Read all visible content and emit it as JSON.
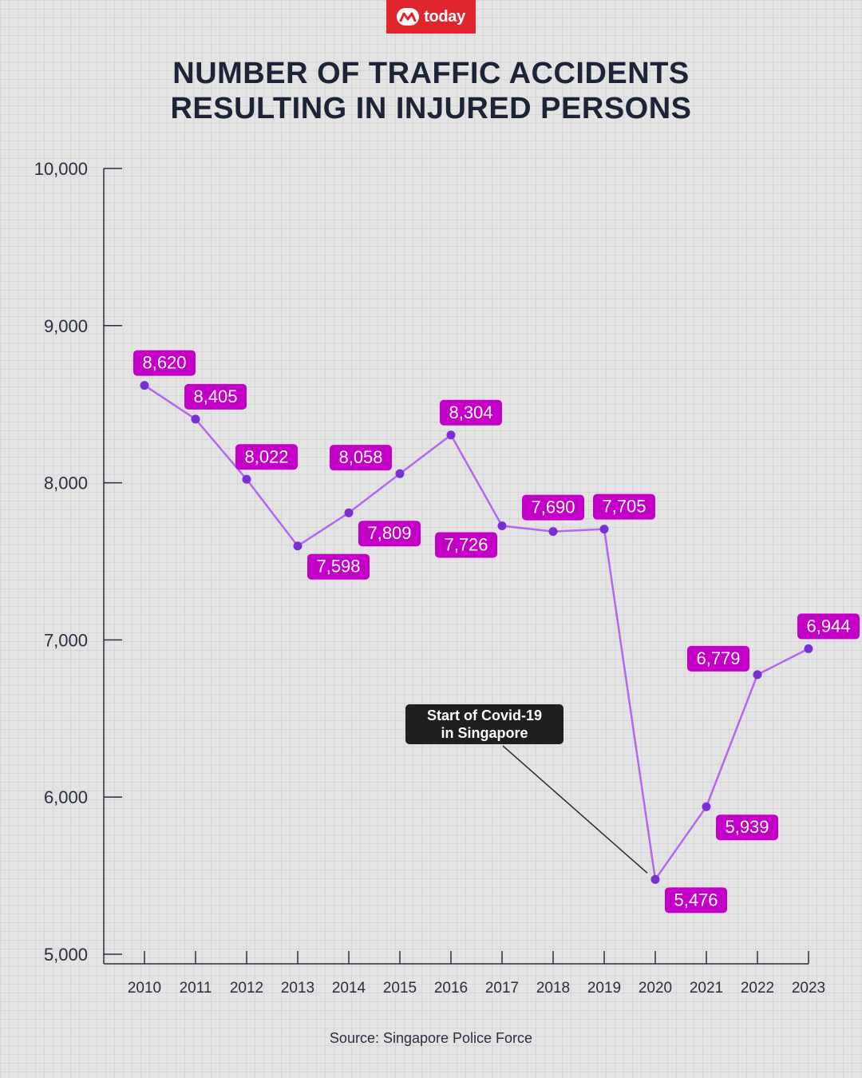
{
  "brand": {
    "name": "today",
    "color": "#e0262c"
  },
  "title": {
    "line1": "NUMBER OF TRAFFIC ACCIDENTS",
    "line2": "RESULTING IN INJURED PERSONS"
  },
  "source": "Source: Singapore Police Force",
  "chart_data": {
    "type": "line",
    "categories": [
      "2010",
      "2011",
      "2012",
      "2013",
      "2014",
      "2015",
      "2016",
      "2017",
      "2018",
      "2019",
      "2020",
      "2021",
      "2022",
      "2023"
    ],
    "series": [
      {
        "values": [
          8620,
          8405,
          8022,
          7598,
          7809,
          8058,
          8304,
          7726,
          7690,
          7705,
          5476,
          5939,
          6779,
          6944
        ],
        "data_labels": [
          "8,620",
          "8,405",
          "8,022",
          "7,598",
          "7,809",
          "8,058",
          "8,304",
          "7,726",
          "7,690",
          "7,705",
          "5,476",
          "5,939",
          "6,779",
          "6,944"
        ],
        "line_color": "#b565f0",
        "marker_color": "#7a2ed8",
        "label_color": "#c400c8"
      }
    ],
    "yticks": [
      5000,
      6000,
      7000,
      8000,
      9000,
      10000
    ],
    "ytick_labels": [
      "5,000",
      "6,000",
      "7,000",
      "8,000",
      "9,000",
      "10,000"
    ],
    "ylim": [
      5000,
      10000
    ],
    "grid": true,
    "annotation": {
      "line1": "Start of Covid-19",
      "line2": "in Singapore",
      "points_to": "2020"
    }
  }
}
